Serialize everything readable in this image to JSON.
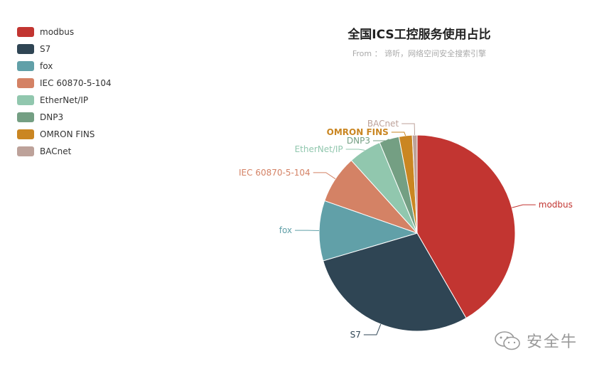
{
  "chart_data": {
    "type": "pie",
    "title": "全国ICS工控服务使用占比",
    "subtitle": "From ： 谛听，网络空间安全搜索引擎",
    "legend_position": "top-left",
    "slices": [
      {
        "name": "modbus",
        "value": 42.0,
        "color": "#c23531"
      },
      {
        "name": "S7",
        "value": 29.0,
        "color": "#2f4554"
      },
      {
        "name": "fox",
        "value": 10.0,
        "color": "#61a0a8"
      },
      {
        "name": "IEC 60870-5-104",
        "value": 8.0,
        "color": "#d48265"
      },
      {
        "name": "EtherNet/IP",
        "value": 5.5,
        "color": "#91c7ae"
      },
      {
        "name": "DNP3",
        "value": 3.3,
        "color": "#749f83"
      },
      {
        "name": "OMRON FINS",
        "value": 2.2,
        "color": "#ca8622"
      },
      {
        "name": "BACnet",
        "value": 0.8,
        "color": "#bda29a"
      }
    ]
  },
  "watermark": {
    "text": "安全牛",
    "icon": "wechat-icon"
  }
}
